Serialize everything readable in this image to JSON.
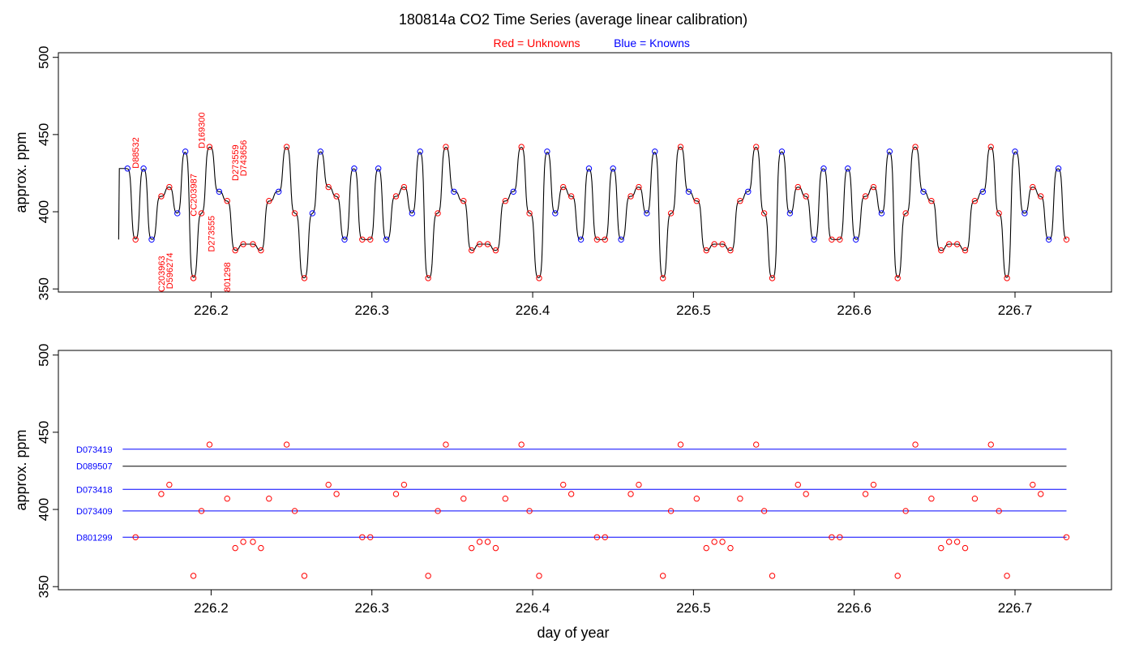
{
  "title": "180814a   CO2 Time Series (average linear calibration)",
  "legend": {
    "unknowns": "Red = Unknowns",
    "knowns": "Blue = Knowns",
    "unknown_color": "#ff0000",
    "known_color": "#0000ff"
  },
  "chart_data": [
    {
      "type": "line",
      "panel": "top",
      "ylabel": "approx. ppm",
      "xlabel": "",
      "xlim": [
        226.105,
        226.76
      ],
      "ylim": [
        348,
        503
      ],
      "x_ticks": [
        "226.2",
        "226.3",
        "226.4",
        "226.5",
        "226.6",
        "226.7"
      ],
      "y_ticks": [
        "350",
        "400",
        "450",
        "500"
      ],
      "grid": false,
      "trace_color": "#000000",
      "series": [
        {
          "name": "Unknowns",
          "color": "#ff0000",
          "points": [
            [
              226.153,
              382
            ],
            [
              226.169,
              410
            ],
            [
              226.174,
              416
            ],
            [
              226.189,
              357
            ],
            [
              226.194,
              399
            ],
            [
              226.199,
              442
            ],
            [
              226.21,
              407
            ],
            [
              226.215,
              375
            ],
            [
              226.22,
              379
            ],
            [
              226.226,
              379
            ],
            [
              226.231,
              375
            ],
            [
              226.236,
              407
            ],
            [
              226.247,
              442
            ],
            [
              226.252,
              399
            ],
            [
              226.258,
              357
            ],
            [
              226.273,
              416
            ],
            [
              226.278,
              410
            ],
            [
              226.294,
              382
            ],
            [
              226.299,
              382
            ],
            [
              226.315,
              410
            ],
            [
              226.32,
              416
            ],
            [
              226.335,
              357
            ],
            [
              226.341,
              399
            ],
            [
              226.346,
              442
            ],
            [
              226.357,
              407
            ],
            [
              226.362,
              375
            ],
            [
              226.367,
              379
            ],
            [
              226.372,
              379
            ],
            [
              226.377,
              375
            ],
            [
              226.383,
              407
            ],
            [
              226.393,
              442
            ],
            [
              226.398,
              399
            ],
            [
              226.404,
              357
            ],
            [
              226.419,
              416
            ],
            [
              226.424,
              410
            ],
            [
              226.44,
              382
            ],
            [
              226.445,
              382
            ],
            [
              226.461,
              410
            ],
            [
              226.466,
              416
            ],
            [
              226.481,
              357
            ],
            [
              226.486,
              399
            ],
            [
              226.492,
              442
            ],
            [
              226.502,
              407
            ],
            [
              226.508,
              375
            ],
            [
              226.513,
              379
            ],
            [
              226.518,
              379
            ],
            [
              226.523,
              375
            ],
            [
              226.529,
              407
            ],
            [
              226.539,
              442
            ],
            [
              226.544,
              399
            ],
            [
              226.549,
              357
            ],
            [
              226.565,
              416
            ],
            [
              226.57,
              410
            ],
            [
              226.586,
              382
            ],
            [
              226.591,
              382
            ],
            [
              226.607,
              410
            ],
            [
              226.612,
              416
            ],
            [
              226.627,
              357
            ],
            [
              226.632,
              399
            ],
            [
              226.638,
              442
            ],
            [
              226.648,
              407
            ],
            [
              226.654,
              375
            ],
            [
              226.659,
              379
            ],
            [
              226.664,
              379
            ],
            [
              226.669,
              375
            ],
            [
              226.675,
              407
            ],
            [
              226.685,
              442
            ],
            [
              226.69,
              399
            ],
            [
              226.695,
              357
            ],
            [
              226.711,
              416
            ],
            [
              226.716,
              410
            ],
            [
              226.732,
              382
            ]
          ]
        },
        {
          "name": "Knowns",
          "color": "#0000ff",
          "points": [
            [
              226.148,
              428
            ],
            [
              226.158,
              428
            ],
            [
              226.163,
              382
            ],
            [
              226.179,
              399
            ],
            [
              226.184,
              439
            ],
            [
              226.205,
              413
            ],
            [
              226.242,
              413
            ],
            [
              226.268,
              439
            ],
            [
              226.263,
              399
            ],
            [
              226.283,
              382
            ],
            [
              226.289,
              428
            ],
            [
              226.304,
              428
            ],
            [
              226.309,
              382
            ],
            [
              226.325,
              399
            ],
            [
              226.33,
              439
            ],
            [
              226.351,
              413
            ],
            [
              226.388,
              413
            ],
            [
              226.409,
              439
            ],
            [
              226.414,
              399
            ],
            [
              226.43,
              382
            ],
            [
              226.435,
              428
            ],
            [
              226.45,
              428
            ],
            [
              226.455,
              382
            ],
            [
              226.471,
              399
            ],
            [
              226.476,
              439
            ],
            [
              226.497,
              413
            ],
            [
              226.534,
              413
            ],
            [
              226.555,
              439
            ],
            [
              226.56,
              399
            ],
            [
              226.575,
              382
            ],
            [
              226.581,
              428
            ],
            [
              226.596,
              428
            ],
            [
              226.601,
              382
            ],
            [
              226.617,
              399
            ],
            [
              226.622,
              439
            ],
            [
              226.643,
              413
            ],
            [
              226.68,
              413
            ],
            [
              226.7,
              439
            ],
            [
              226.706,
              399
            ],
            [
              226.721,
              382
            ],
            [
              226.727,
              428
            ]
          ]
        }
      ],
      "annotations": [
        {
          "text": "D88532",
          "x": 226.153,
          "y": 428
        },
        {
          "text": "C203963",
          "x": 226.169,
          "y": 348
        },
        {
          "text": "D596274",
          "x": 226.174,
          "y": 350
        },
        {
          "text": "CC203987",
          "x": 226.189,
          "y": 397
        },
        {
          "text": "D169300",
          "x": 226.194,
          "y": 441
        },
        {
          "text": "D273555",
          "x": 226.2,
          "y": 374
        },
        {
          "text": "801298",
          "x": 226.21,
          "y": 348
        },
        {
          "text": "D273559",
          "x": 226.215,
          "y": 420
        },
        {
          "text": "D743656",
          "x": 226.22,
          "y": 423
        }
      ]
    },
    {
      "type": "scatter",
      "panel": "bottom",
      "ylabel": "approx. ppm",
      "xlabel": "day of year",
      "xlim": [
        226.105,
        226.76
      ],
      "ylim": [
        348,
        503
      ],
      "x_ticks": [
        "226.2",
        "226.3",
        "226.4",
        "226.5",
        "226.6",
        "226.7"
      ],
      "y_ticks": [
        "350",
        "400",
        "450",
        "500"
      ],
      "grid": false,
      "reference_lines": [
        {
          "label": "D073419",
          "y": 439,
          "color": "#0000ff"
        },
        {
          "label": "D089507",
          "y": 428,
          "color": "#000000"
        },
        {
          "label": "D073418",
          "y": 413,
          "color": "#0000ff"
        },
        {
          "label": "D073409",
          "y": 399,
          "color": "#0000ff"
        },
        {
          "label": "D801299",
          "y": 382,
          "color": "#0000ff"
        }
      ],
      "line_x_range": [
        226.145,
        226.732
      ],
      "label_color": "#0000ff",
      "series_ref": "Unknowns"
    }
  ]
}
